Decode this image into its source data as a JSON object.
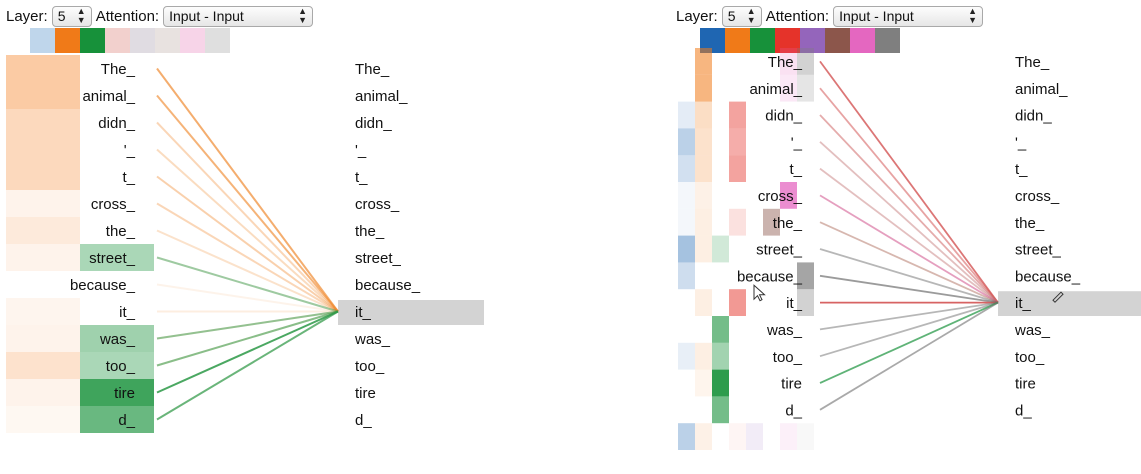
{
  "left": {
    "layer_label": "Layer:",
    "layer_value": "5",
    "attention_label": "Attention:",
    "attention_value": "Input - Input",
    "swatches": [
      "#aac8e4",
      "#f07a18",
      "#17913a",
      "#eec0bc",
      "#d5d0d8",
      "#e0d8d6",
      "#f4c6e0",
      "#d4d4d4"
    ],
    "swatch_active": [
      false,
      true,
      true,
      false,
      false,
      false,
      false,
      false
    ],
    "left_tokens": [
      "The_",
      "animal_",
      "didn_",
      "'_",
      "t_",
      "cross_",
      "the_",
      "street_",
      "because_",
      "it_",
      "was_",
      "too_",
      "tire",
      "d_"
    ],
    "right_tokens": [
      "The_",
      "animal_",
      "didn_",
      "'_",
      "t_",
      "cross_",
      "the_",
      "street_",
      "because_",
      "it_",
      "was_",
      "too_",
      "tire",
      "d_"
    ],
    "selected_right_index": 9
  },
  "right": {
    "layer_label": "Layer:",
    "layer_value": "5",
    "attention_label": "Attention:",
    "attention_value": "Input - Input",
    "swatches": [
      "#1f66b2",
      "#f07a18",
      "#17913a",
      "#e5332a",
      "#9465bb",
      "#8c564b",
      "#e467c0",
      "#7f7f7f"
    ],
    "swatch_active": [
      true,
      true,
      true,
      true,
      true,
      true,
      true,
      true
    ],
    "left_tokens": [
      "The_",
      "animal_",
      "didn_",
      "'_",
      "t_",
      "cross_",
      "the_",
      "street_",
      "because_",
      "it_",
      "was_",
      "too_",
      "tire",
      "d_"
    ],
    "right_tokens": [
      "The_",
      "animal_",
      "didn_",
      "'_",
      "t_",
      "cross_",
      "the_",
      "street_",
      "because_",
      "it_",
      "was_",
      "too_",
      "tire",
      "d_"
    ],
    "selected_right_index": 9
  }
}
